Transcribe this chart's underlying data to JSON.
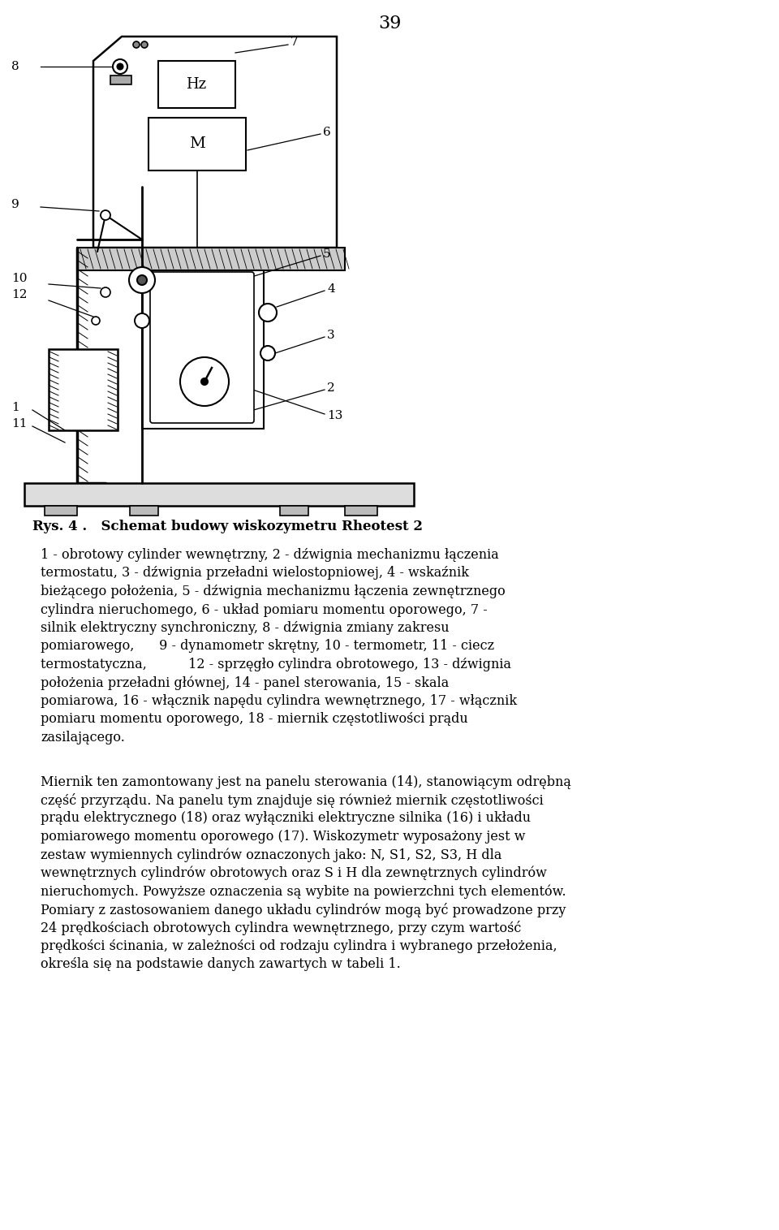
{
  "page_number": "39",
  "figure_caption": "Rys. 4 .   Schemat budowy wiskozymetru Rheotest 2",
  "description_lines": [
    "1 - obrotowy cylinder wewnętrzny, 2 - dźwignia mechanizmu łączenia",
    "termostatu, 3 - dźwignia przeładni wielostopniowej, 4 - wskaźnik",
    "bieżącego położenia, 5 - dźwignia mechanizmu łączenia zewnętrznego",
    "cylindra nieruchomego, 6 - układ pomiaru momentu oporowego, 7 -",
    "silnik elektryczny synchroniczny, 8 - dźwignia zmiany zakresu",
    "pomiarowego,      9 - dynamometr skrętny, 10 - termometr, 11 - ciecz",
    "termostatyczna,          12 - sprzęgło cylindra obrotowego, 13 - dźwignia",
    "położenia przeładni głównej, 14 - panel sterowania, 15 - skala",
    "pomiarowa, 16 - włącznik napędu cylindra wewnętrznego, 17 - włącznik",
    "pomiaru momentu oporowego, 18 - miernik częstotliwości prądu",
    "zasilającego."
  ],
  "paragraph2_lines": [
    "Miernik ten zamontowany jest na panelu sterowania (14), stanowiącym odrębną",
    "część przyrządu. Na panelu tym znajduje się również miernik częstotliwości",
    "prądu elektrycznego (18) oraz wyłączniki elektryczne silnika (16) i układu",
    "pomiarowego momentu oporowego (17). Wiskozymetr wyposażony jest w",
    "zestaw wymiennych cylindrów oznaczonych jako: N, S1, S2, S3, H dla",
    "wewnętrznych cylindrów obrotowych oraz S i H dla zewnętrznych cylindrów",
    "nieruchomych. Powyższe oznaczenia są wybite na powierzchni tych elementów.",
    "Pomiary z zastosowaniem danego układu cylindrów mogą być prowadzone przy",
    "24 prędkościach obrotowych cylindra wewnętrznego, przy czym wartość",
    "prędkości ścinania, w zależności od rodzaju cylindra i wybranego przełożenia,",
    "określa się na podstawie danych zawartych w tabeli 1."
  ],
  "bg_color": "#ffffff",
  "text_color": "#000000",
  "diagram_scale": 1.0
}
